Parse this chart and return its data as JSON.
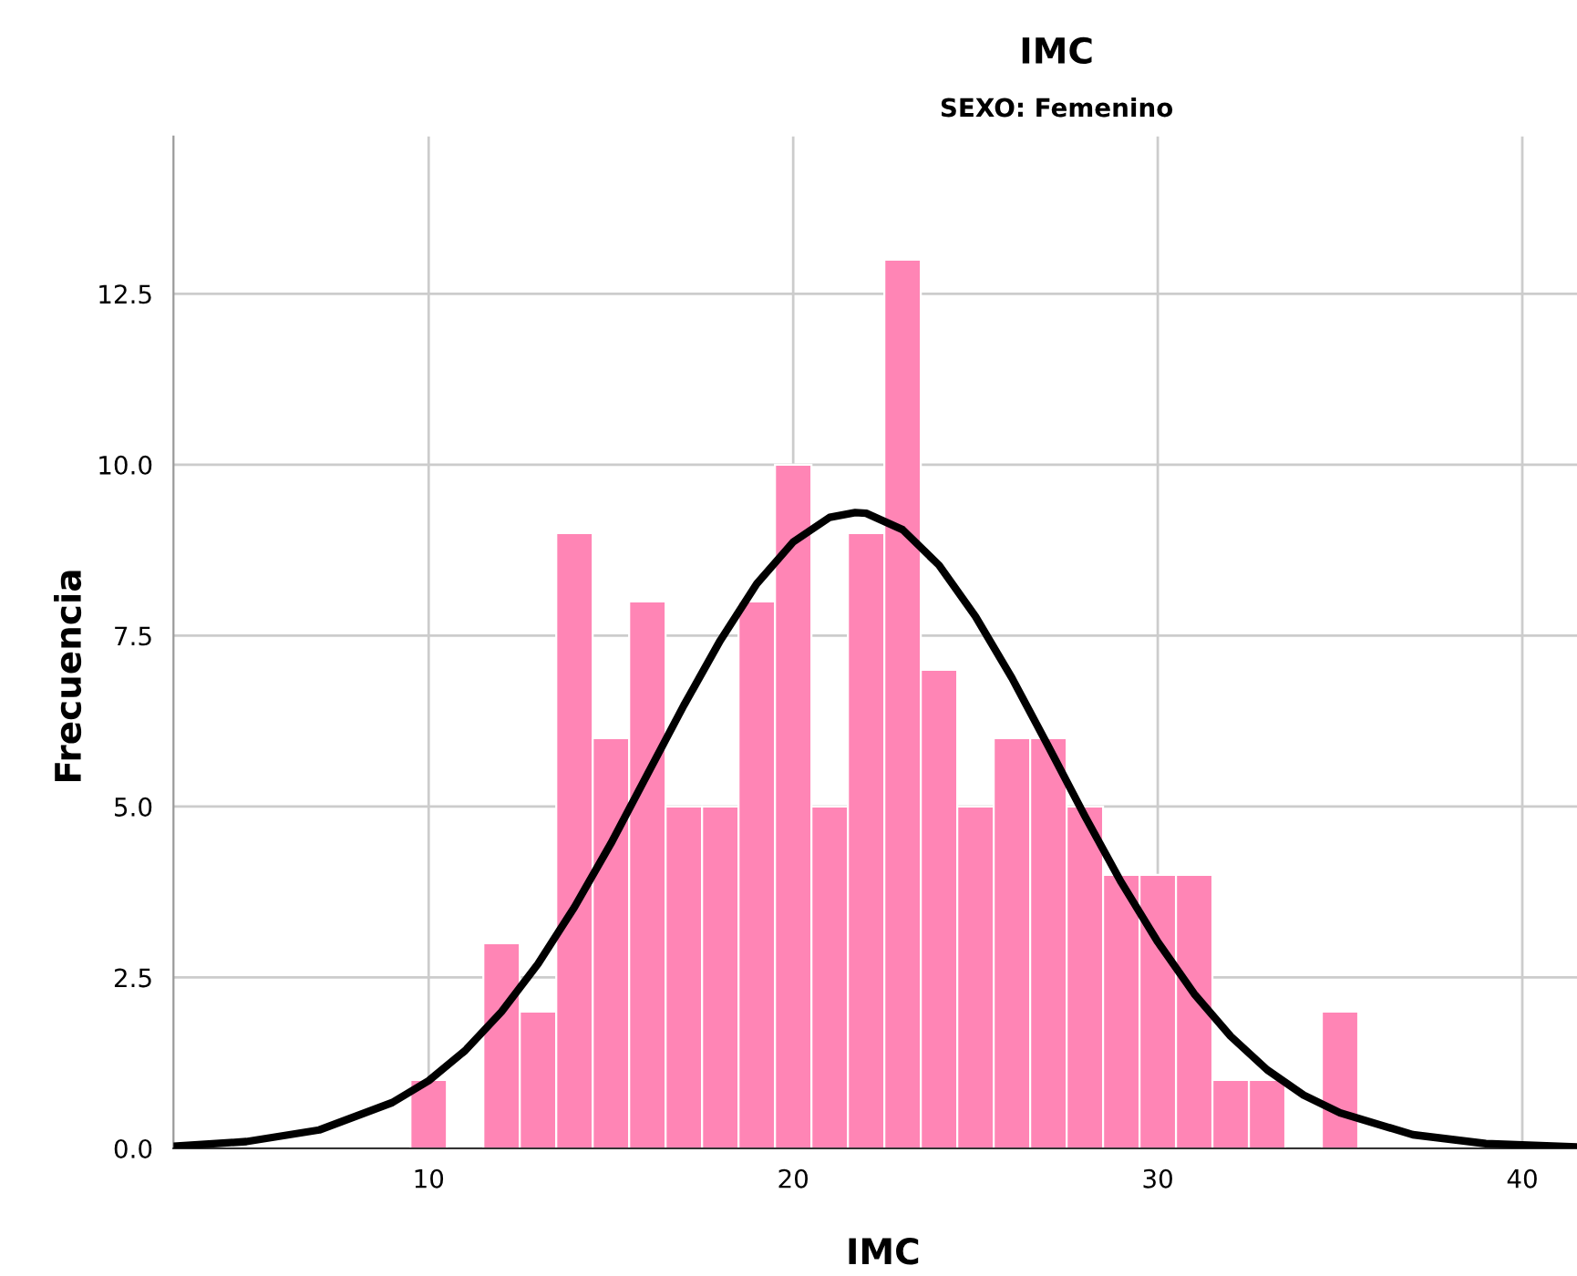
{
  "chart_data": {
    "type": "histogram",
    "title": "IMC",
    "subtitle": "SEXO: Femenino",
    "xlabel": "IMC",
    "ylabel": "Frecuencia",
    "bins": [
      9.5,
      10.5,
      11.5,
      12.5,
      13.5,
      14.5,
      15.5,
      16.5,
      17.5,
      18.5,
      19.5,
      20.5,
      21.5,
      22.5,
      23.5,
      24.5,
      25.5,
      26.5,
      27.5,
      28.5,
      29.5,
      30.5,
      31.5,
      32.5,
      33.5,
      34.5,
      35.5
    ],
    "values": [
      1,
      0,
      3,
      2,
      9,
      6,
      8,
      5,
      5,
      8,
      10,
      5,
      9,
      13,
      7,
      5,
      6,
      6,
      5,
      4,
      4,
      4,
      1,
      1,
      0,
      2
    ],
    "color": "#ff85b5",
    "series": [
      {
        "type": "line",
        "color": "#000000",
        "x": [
          3,
          5,
          7,
          9,
          10,
          11,
          12,
          13,
          14,
          15,
          16,
          17,
          18,
          19,
          20,
          21,
          21.7,
          22,
          23,
          24,
          25,
          26,
          27,
          28,
          29,
          30,
          31,
          32,
          33,
          34,
          35,
          37,
          39,
          41.5
        ],
        "values": [
          0.03,
          0.1,
          0.27,
          0.67,
          0.99,
          1.43,
          2.0,
          2.7,
          3.53,
          4.46,
          5.47,
          6.48,
          7.43,
          8.26,
          8.87,
          9.23,
          9.3,
          9.29,
          9.05,
          8.53,
          7.78,
          6.88,
          5.88,
          4.86,
          3.89,
          3.02,
          2.26,
          1.64,
          1.15,
          0.78,
          0.52,
          0.2,
          0.07,
          0.02
        ]
      }
    ],
    "xlim": [
      3,
      41.5
    ],
    "ylim": [
      0,
      14.8
    ],
    "xticks": [
      10,
      20,
      30,
      40
    ],
    "yticks": [
      {
        "value": 0,
        "label": "0.0"
      },
      {
        "value": 2.5,
        "label": "2.5"
      },
      {
        "value": 5,
        "label": "5.0"
      },
      {
        "value": 7.5,
        "label": "7.5"
      },
      {
        "value": 10,
        "label": "10.0"
      },
      {
        "value": 12.5,
        "label": "12.5"
      }
    ],
    "grid": true
  }
}
